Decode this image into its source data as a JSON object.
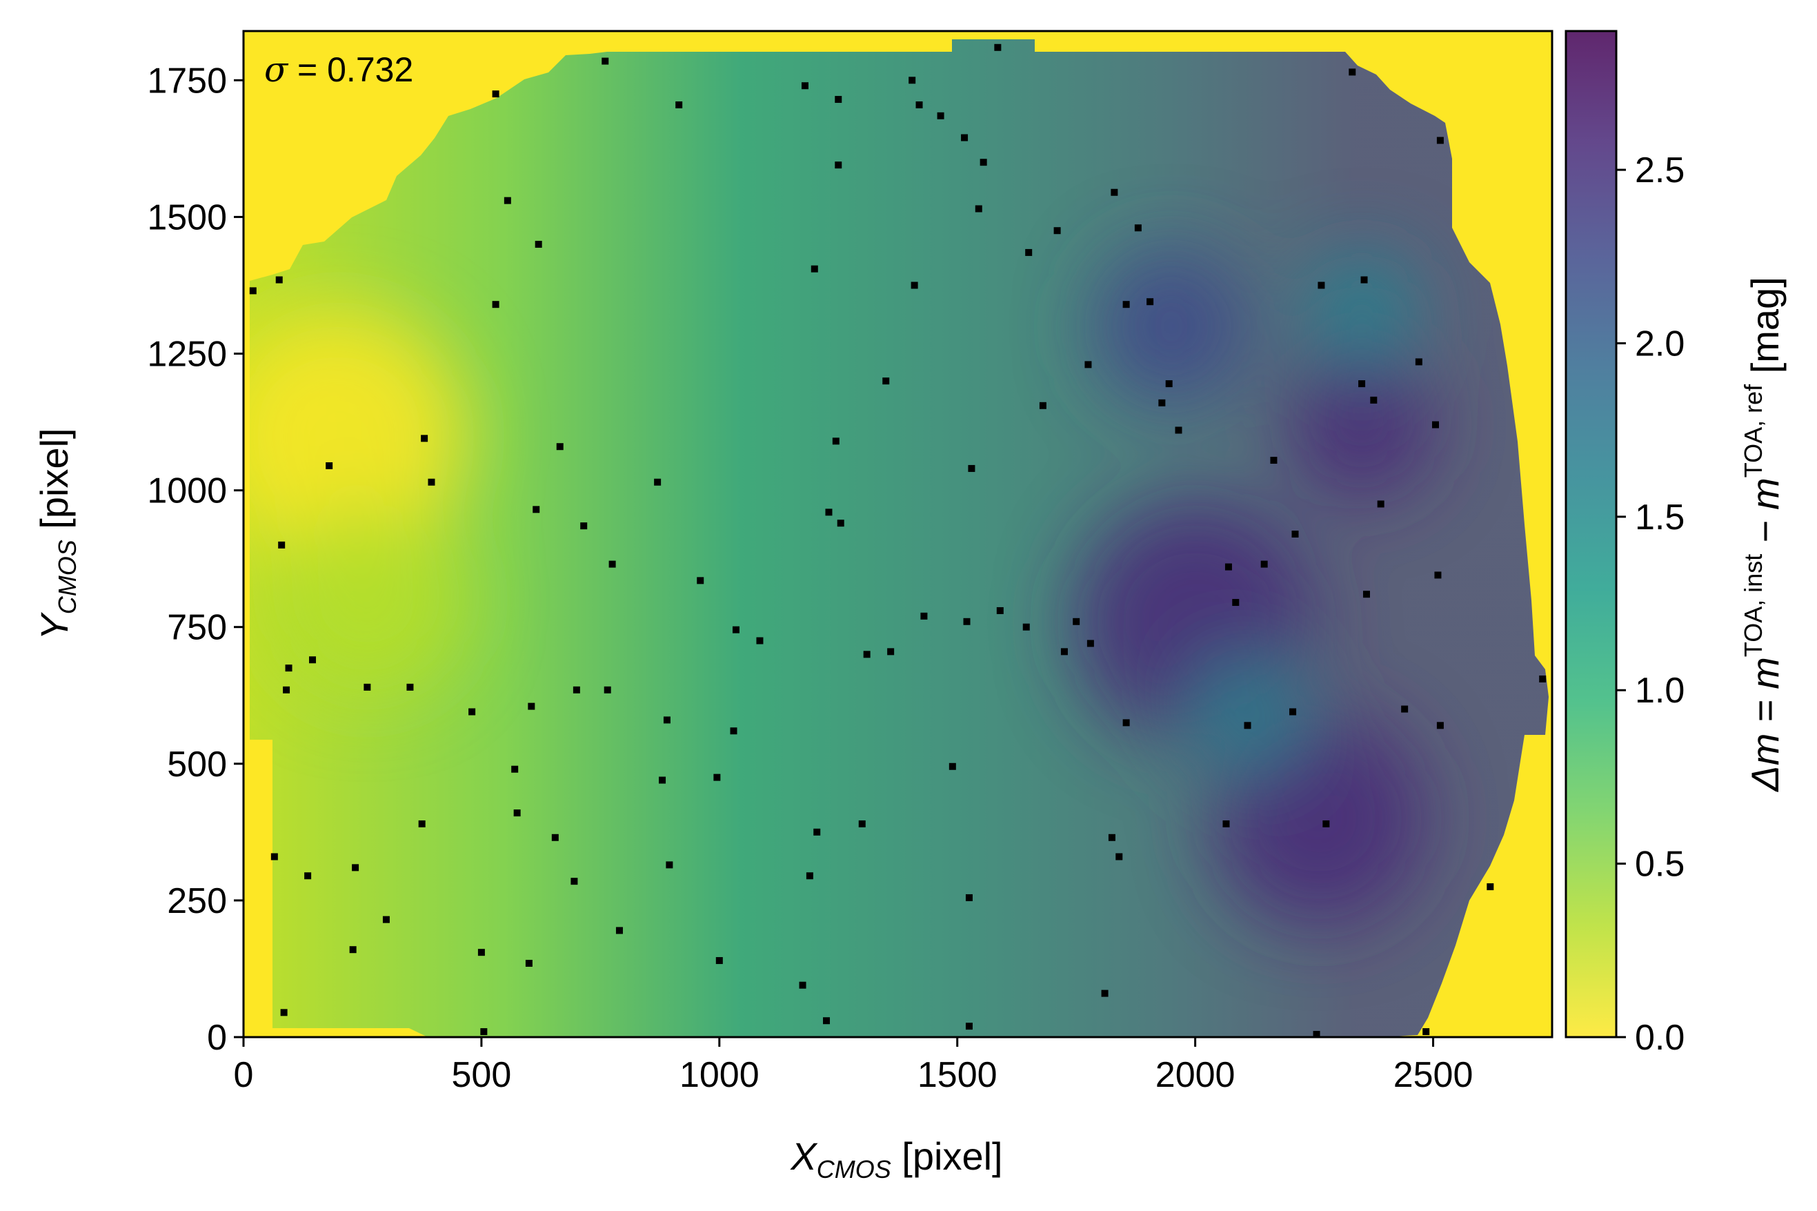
{
  "chart_data": {
    "type": "heatmap",
    "title": "",
    "annotation": {
      "symbol": "σ",
      "text": " = 0.732"
    },
    "xlabel": {
      "main": "X",
      "sub": "CMOS",
      "unit": " [pixel]"
    },
    "ylabel": {
      "main": "Y",
      "sub": "CMOS",
      "unit": " [pixel]"
    },
    "xlim": [
      0,
      2750
    ],
    "ylim": [
      0,
      1840
    ],
    "xticks": [
      0,
      500,
      1000,
      1500,
      2000,
      2500
    ],
    "yticks": [
      0,
      250,
      500,
      750,
      1000,
      1250,
      1500,
      1750
    ],
    "colorbar": {
      "label": {
        "prefix": "Δm = m",
        "sup1": "TOA, inst",
        "mid": " − m",
        "sup2": "TOA, ref",
        "suffix": " [mag]"
      },
      "range": [
        0.0,
        2.9
      ],
      "ticks": [
        "0.0",
        "0.5",
        "1.0",
        "1.5",
        "2.0",
        "2.5"
      ],
      "tick_values": [
        0.0,
        0.5,
        1.0,
        1.5,
        2.0,
        2.5
      ],
      "colormap": "viridis_r",
      "colors": [
        "#fde725",
        "#b5de2b",
        "#6ece58",
        "#35b779",
        "#1f9e89",
        "#26828e",
        "#31688e",
        "#3e4989",
        "#482878",
        "#440154"
      ],
      "alpha": 0.85
    },
    "background_color": "#fde725",
    "marker_color": "#000000",
    "stars": [
      [
        20,
        1365
      ],
      [
        75,
        1385
      ],
      [
        65,
        330
      ],
      [
        80,
        900
      ],
      [
        85,
        45
      ],
      [
        90,
        635
      ],
      [
        95,
        675
      ],
      [
        135,
        295
      ],
      [
        145,
        690
      ],
      [
        180,
        1045
      ],
      [
        230,
        160
      ],
      [
        235,
        310
      ],
      [
        260,
        640
      ],
      [
        300,
        215
      ],
      [
        350,
        640
      ],
      [
        375,
        390
      ],
      [
        380,
        1095
      ],
      [
        395,
        1015
      ],
      [
        480,
        595
      ],
      [
        500,
        155
      ],
      [
        505,
        10
      ],
      [
        530,
        1340
      ],
      [
        530,
        1725
      ],
      [
        555,
        1530
      ],
      [
        570,
        490
      ],
      [
        575,
        410
      ],
      [
        600,
        135
      ],
      [
        605,
        605
      ],
      [
        615,
        965
      ],
      [
        620,
        1450
      ],
      [
        655,
        365
      ],
      [
        665,
        1080
      ],
      [
        695,
        285
      ],
      [
        700,
        635
      ],
      [
        715,
        935
      ],
      [
        760,
        1785
      ],
      [
        765,
        635
      ],
      [
        775,
        865
      ],
      [
        790,
        195
      ],
      [
        870,
        1015
      ],
      [
        880,
        470
      ],
      [
        890,
        580
      ],
      [
        895,
        315
      ],
      [
        915,
        1705
      ],
      [
        960,
        835
      ],
      [
        995,
        475
      ],
      [
        1000,
        140
      ],
      [
        1030,
        560
      ],
      [
        1035,
        745
      ],
      [
        1085,
        725
      ],
      [
        1175,
        95
      ],
      [
        1180,
        1740
      ],
      [
        1190,
        295
      ],
      [
        1200,
        1405
      ],
      [
        1205,
        375
      ],
      [
        1225,
        30
      ],
      [
        1230,
        960
      ],
      [
        1245,
        1090
      ],
      [
        1250,
        1595
      ],
      [
        1250,
        1715
      ],
      [
        1255,
        940
      ],
      [
        1300,
        390
      ],
      [
        1310,
        700
      ],
      [
        1350,
        1200
      ],
      [
        1360,
        705
      ],
      [
        1405,
        1750
      ],
      [
        1410,
        1375
      ],
      [
        1420,
        1705
      ],
      [
        1430,
        770
      ],
      [
        1465,
        1685
      ],
      [
        1490,
        495
      ],
      [
        1515,
        1645
      ],
      [
        1520,
        760
      ],
      [
        1525,
        20
      ],
      [
        1525,
        255
      ],
      [
        1530,
        1040
      ],
      [
        1545,
        1515
      ],
      [
        1555,
        1600
      ],
      [
        1585,
        1810
      ],
      [
        1590,
        780
      ],
      [
        1645,
        750
      ],
      [
        1650,
        1435
      ],
      [
        1680,
        1155
      ],
      [
        1710,
        1475
      ],
      [
        1725,
        705
      ],
      [
        1750,
        760
      ],
      [
        1775,
        1230
      ],
      [
        1780,
        720
      ],
      [
        1810,
        80
      ],
      [
        1825,
        365
      ],
      [
        1830,
        1545
      ],
      [
        1840,
        330
      ],
      [
        1855,
        575
      ],
      [
        1855,
        1340
      ],
      [
        1880,
        1480
      ],
      [
        1905,
        1345
      ],
      [
        1930,
        1160
      ],
      [
        1945,
        1195
      ],
      [
        1965,
        1110
      ],
      [
        2065,
        390
      ],
      [
        2070,
        860
      ],
      [
        2085,
        795
      ],
      [
        2110,
        570
      ],
      [
        2145,
        865
      ],
      [
        2165,
        1055
      ],
      [
        2205,
        595
      ],
      [
        2210,
        920
      ],
      [
        2255,
        5
      ],
      [
        2265,
        1375
      ],
      [
        2275,
        390
      ],
      [
        2330,
        1765
      ],
      [
        2350,
        1195
      ],
      [
        2355,
        1385
      ],
      [
        2360,
        810
      ],
      [
        2375,
        1165
      ],
      [
        2390,
        975
      ],
      [
        2440,
        600
      ],
      [
        2470,
        1235
      ],
      [
        2485,
        10
      ],
      [
        2505,
        1120
      ],
      [
        2510,
        845
      ],
      [
        2515,
        1640
      ],
      [
        2515,
        570
      ],
      [
        2620,
        275
      ],
      [
        2730,
        655
      ]
    ]
  }
}
